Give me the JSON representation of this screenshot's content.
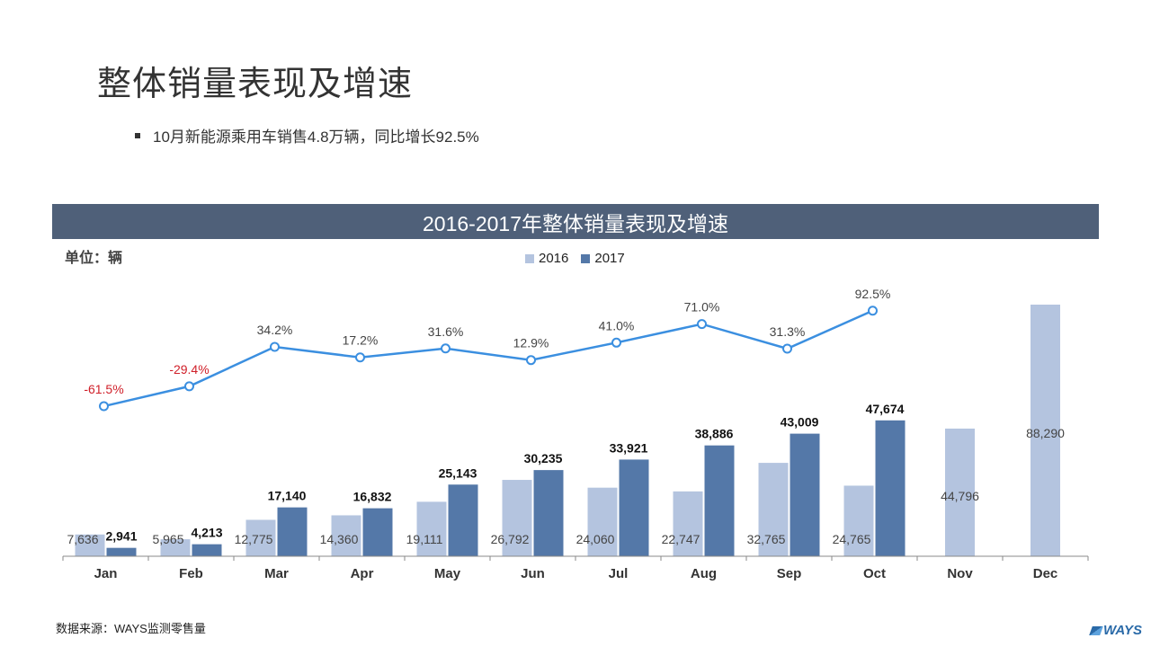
{
  "page": {
    "title": "整体销量表现及增速",
    "bullet": "10月新能源乘用车销售4.8万辆，同比增长92.5%",
    "source": "数据来源：WAYS监测零售量",
    "brand": "WAYS"
  },
  "chart_data": {
    "type": "bar",
    "title": "2016-2017年整体销量表现及增速",
    "unit": "单位：辆",
    "categories": [
      "Jan",
      "Feb",
      "Mar",
      "Apr",
      "May",
      "Jun",
      "Jul",
      "Aug",
      "Sep",
      "Oct",
      "Nov",
      "Dec"
    ],
    "series": [
      {
        "name": "2016",
        "color": "#b4c4df",
        "values": [
          7636,
          5965,
          12775,
          14360,
          19111,
          26792,
          24060,
          22747,
          32765,
          24765,
          44796,
          88290
        ],
        "labels": [
          "7,636",
          "5,965",
          "12,775",
          "14,360",
          "19,111",
          "26,792",
          "24,060",
          "22,747",
          "32,765",
          "24,765",
          "44,796",
          "88,290"
        ]
      },
      {
        "name": "2017",
        "color": "#5478a8",
        "values": [
          2941,
          4213,
          17140,
          16832,
          25143,
          30235,
          33921,
          38886,
          43009,
          47674,
          null,
          null
        ],
        "labels": [
          "2,941",
          "4,213",
          "17,140",
          "16,832",
          "25,143",
          "30,235",
          "33,921",
          "38,886",
          "43,009",
          "47,674",
          "",
          ""
        ]
      }
    ],
    "growth": {
      "values": [
        -61.5,
        -29.4,
        34.2,
        17.2,
        31.6,
        12.9,
        41.0,
        71.0,
        31.3,
        92.5
      ],
      "labels": [
        "-61.5%",
        "-29.4%",
        "34.2%",
        "17.2%",
        "31.6%",
        "12.9%",
        "41.0%",
        "71.0%",
        "31.3%",
        "92.5%"
      ],
      "color": "#3b8fe0",
      "negative_label_color": "#d0202a"
    },
    "ylim": [
      0,
      88290
    ],
    "grid": false,
    "legend_position": "top-center"
  }
}
